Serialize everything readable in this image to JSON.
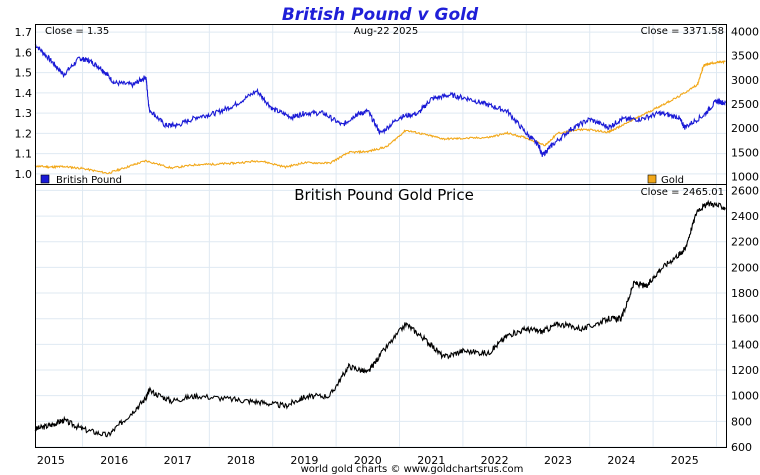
{
  "title": "British Pound v Gold",
  "date_label": "Aug-22  2025",
  "footer": "world gold charts © www.goldchartsrus.com",
  "colors": {
    "pound": "#1a1ad6",
    "gold": "#f2a81a",
    "gold_price": "#000000",
    "title": "#1f1fd8"
  },
  "chart_data": [
    {
      "type": "line",
      "title": "British Pound v Gold",
      "left_axis_ticks": [
        "1.7",
        "1.6",
        "1.5",
        "1.4",
        "1.3",
        "1.2",
        "1.1",
        "1.0"
      ],
      "right_axis_ticks": [
        "4000",
        "3500",
        "3000",
        "2500",
        "2000",
        "1500",
        "1000"
      ],
      "ylim_left": [
        0.95,
        1.74
      ],
      "ylim_right": [
        850,
        4150
      ],
      "close_left": "Close = 1.35",
      "close_right": "Close = 3371.58",
      "series": [
        {
          "name": "British Pound",
          "axis": "left",
          "x": [
            2014.75,
            2015.0,
            2015.2,
            2015.45,
            2015.6,
            2015.8,
            2016.0,
            2016.3,
            2016.5,
            2016.55,
            2016.8,
            2017.0,
            2017.3,
            2017.6,
            2017.9,
            2018.25,
            2018.5,
            2018.8,
            2019.0,
            2019.3,
            2019.6,
            2019.8,
            2020.0,
            2020.2,
            2020.5,
            2020.8,
            2021.0,
            2021.3,
            2021.6,
            2021.9,
            2022.2,
            2022.5,
            2022.7,
            2022.75,
            2022.9,
            2023.2,
            2023.5,
            2023.8,
            2024.0,
            2024.3,
            2024.6,
            2024.9,
            2025.0,
            2025.3,
            2025.5,
            2025.64
          ],
          "values": [
            1.64,
            1.56,
            1.49,
            1.57,
            1.56,
            1.52,
            1.45,
            1.44,
            1.48,
            1.32,
            1.24,
            1.24,
            1.28,
            1.3,
            1.34,
            1.41,
            1.32,
            1.28,
            1.3,
            1.3,
            1.24,
            1.29,
            1.31,
            1.2,
            1.28,
            1.3,
            1.37,
            1.39,
            1.37,
            1.34,
            1.31,
            1.2,
            1.14,
            1.09,
            1.14,
            1.22,
            1.27,
            1.23,
            1.27,
            1.27,
            1.3,
            1.28,
            1.23,
            1.29,
            1.36,
            1.35
          ]
        },
        {
          "name": "Gold",
          "axis": "right",
          "x": [
            2014.75,
            2015.0,
            2015.2,
            2015.5,
            2015.9,
            2016.2,
            2016.5,
            2016.9,
            2017.3,
            2017.6,
            2017.9,
            2018.3,
            2018.7,
            2019.0,
            2019.4,
            2019.7,
            2020.0,
            2020.3,
            2020.6,
            2020.9,
            2021.2,
            2021.5,
            2021.9,
            2022.2,
            2022.5,
            2022.8,
            2023.0,
            2023.4,
            2023.8,
            2024.0,
            2024.3,
            2024.6,
            2024.9,
            2025.2,
            2025.3,
            2025.45,
            2025.64
          ],
          "values": [
            1220,
            1200,
            1210,
            1170,
            1070,
            1200,
            1330,
            1180,
            1250,
            1260,
            1280,
            1330,
            1200,
            1290,
            1280,
            1500,
            1520,
            1620,
            1960,
            1870,
            1780,
            1790,
            1810,
            1900,
            1800,
            1650,
            1900,
            1980,
            1920,
            2050,
            2250,
            2450,
            2650,
            2900,
            3300,
            3350,
            3371.58
          ]
        }
      ]
    },
    {
      "type": "line",
      "title": "British Pound Gold Price",
      "close": "Close = 2465.01",
      "x_ticks": [
        "2015",
        "2016",
        "2017",
        "2018",
        "2019",
        "2020",
        "2021",
        "2022",
        "2023",
        "2024",
        "2025"
      ],
      "y_ticks": [
        "2600",
        "2400",
        "2200",
        "2000",
        "1800",
        "1600",
        "1400",
        "1200",
        "1000",
        "800",
        "600"
      ],
      "ylim": [
        600,
        2650
      ],
      "series": [
        {
          "name": "British Pound Gold Price",
          "x": [
            2014.75,
            2015.0,
            2015.2,
            2015.5,
            2015.9,
            2016.2,
            2016.5,
            2016.55,
            2016.9,
            2017.3,
            2017.9,
            2018.3,
            2018.7,
            2019.0,
            2019.4,
            2019.7,
            2020.0,
            2020.2,
            2020.6,
            2020.9,
            2021.2,
            2021.5,
            2021.9,
            2022.2,
            2022.5,
            2022.75,
            2023.0,
            2023.4,
            2023.8,
            2024.0,
            2024.2,
            2024.4,
            2024.6,
            2024.9,
            2025.0,
            2025.2,
            2025.4,
            2025.64
          ],
          "values": [
            740,
            770,
            810,
            740,
            690,
            830,
            980,
            1040,
            960,
            1000,
            970,
            950,
            920,
            990,
            1000,
            1230,
            1180,
            1320,
            1560,
            1440,
            1300,
            1350,
            1330,
            1470,
            1520,
            1500,
            1560,
            1520,
            1600,
            1600,
            1880,
            1850,
            1980,
            2100,
            2140,
            2450,
            2500,
            2465.01
          ]
        }
      ]
    }
  ]
}
